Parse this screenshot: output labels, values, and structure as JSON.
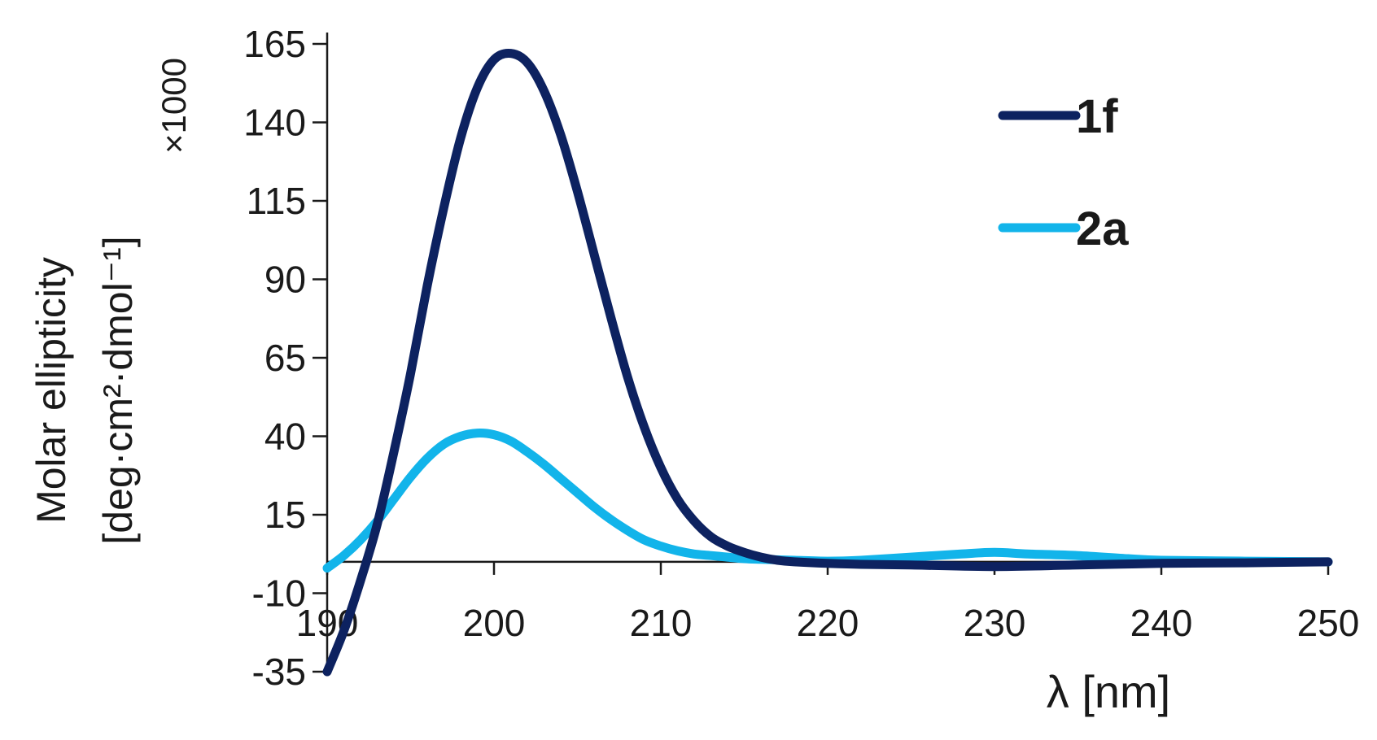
{
  "chart_data": {
    "type": "line",
    "xlabel": "λ [nm]",
    "ylabel_line1": "Molar ellipticity",
    "ylabel_line2": "[deg·cm²·dmol⁻¹]",
    "y_multiplier": "×1000",
    "xlim": [
      190,
      250
    ],
    "ylim": [
      -35,
      165
    ],
    "x_ticks": [
      "190",
      "200",
      "210",
      "220",
      "230",
      "240",
      "250"
    ],
    "y_ticks": [
      "165",
      "140",
      "115",
      "90",
      "65",
      "40",
      "15",
      "-10",
      "-35"
    ],
    "grid": false,
    "legend_position": "top-right",
    "series": [
      {
        "name": "1f",
        "color": "#0d2260",
        "x": [
          190,
          191,
          192,
          193,
          194,
          195,
          196,
          197,
          198,
          199,
          200,
          201,
          202,
          203,
          204,
          205,
          206,
          207,
          208,
          209,
          210,
          211,
          212,
          213,
          214,
          215,
          216,
          217,
          218,
          220,
          222,
          225,
          230,
          235,
          240,
          245,
          250
        ],
        "y": [
          -35,
          -22,
          -6,
          12,
          35,
          60,
          88,
          113,
          135,
          151,
          160,
          162,
          159,
          150,
          136,
          118,
          98,
          78,
          59,
          43,
          30,
          20,
          13,
          8,
          5,
          3,
          1.5,
          0.5,
          0,
          -0.5,
          -0.8,
          -1,
          -1.5,
          -1,
          -0.5,
          -0.3,
          0
        ]
      },
      {
        "name": "2a",
        "color": "#12b4ea",
        "x": [
          190,
          191,
          192,
          193,
          194,
          195,
          196,
          197,
          198,
          199,
          200,
          201,
          202,
          203,
          204,
          205,
          206,
          207,
          208,
          209,
          210,
          211,
          212,
          213,
          214,
          215,
          216,
          218,
          220,
          222,
          225,
          228,
          230,
          232,
          235,
          238,
          240,
          245,
          250
        ],
        "y": [
          -2,
          2,
          7,
          13,
          20,
          27,
          33,
          37.5,
          40,
          41,
          40.5,
          38.5,
          35,
          31,
          26.5,
          22,
          17.5,
          13.5,
          10,
          7,
          5,
          3.5,
          2.5,
          2,
          1.5,
          1,
          0.8,
          0.5,
          0.2,
          0.5,
          1.5,
          2.5,
          3,
          2.5,
          2,
          1,
          0.5,
          0.2,
          0
        ]
      }
    ]
  }
}
